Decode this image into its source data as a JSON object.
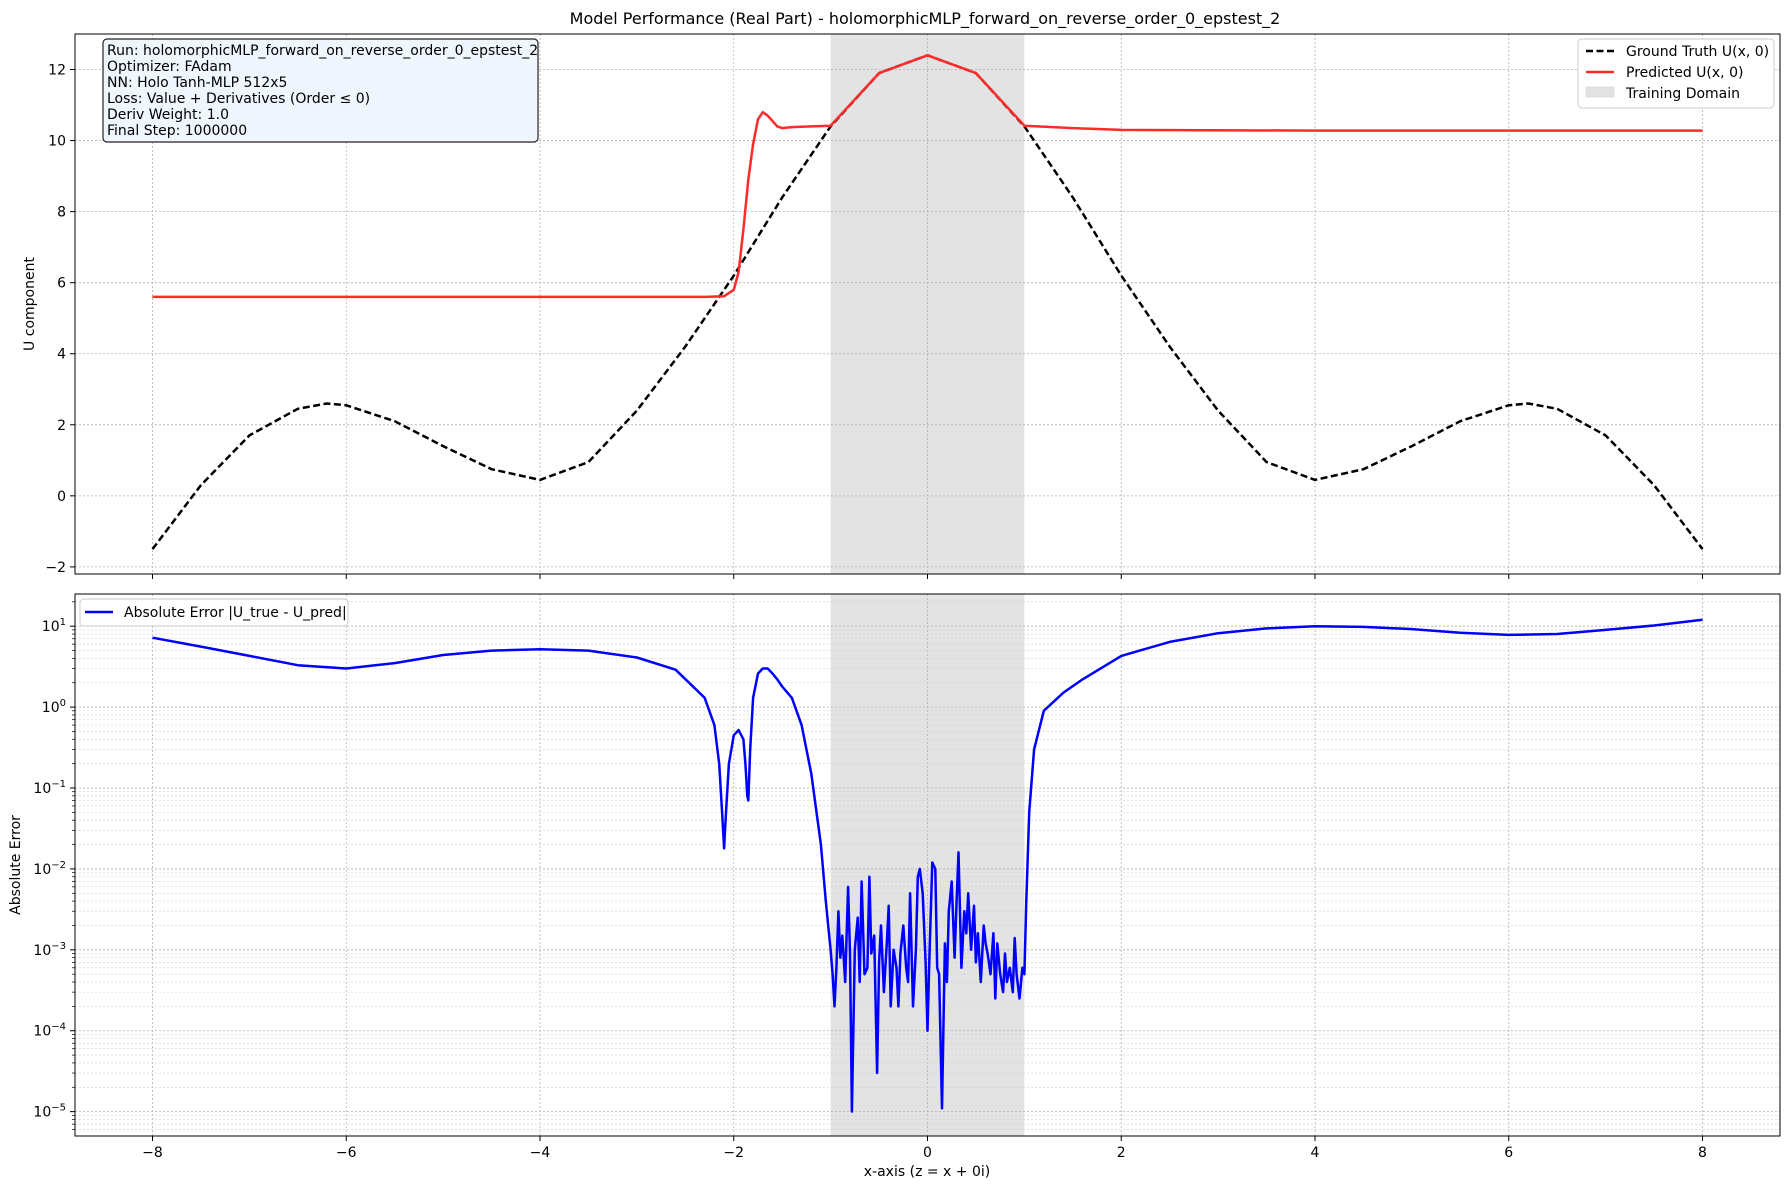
{
  "figure": {
    "title": "Model Performance (Real Part) - holomorphicMLP_forward_on_reverse_order_0_epstest_2",
    "xlabel": "x-axis (z = x + 0i)"
  },
  "chart_data": [
    {
      "type": "line",
      "panel": "top",
      "ylabel": "U component",
      "xlim": [
        -8.8,
        8.8
      ],
      "ylim": [
        -2.2,
        13.0
      ],
      "x_ticks": [
        -8,
        -6,
        -4,
        -2,
        0,
        2,
        4,
        6,
        8
      ],
      "x_tick_labels": [
        "−8",
        "−6",
        "−4",
        "−2",
        "0",
        "2",
        "4",
        "6",
        "8"
      ],
      "y_ticks": [
        -2,
        0,
        2,
        4,
        6,
        8,
        10,
        12
      ],
      "y_tick_labels": [
        "−2",
        "0",
        "2",
        "4",
        "6",
        "8",
        "10",
        "12"
      ],
      "grid": true,
      "shaded_region": {
        "x": [
          -1,
          1
        ],
        "label": "Training Domain",
        "color": "#d3d3d3"
      },
      "legend_position": "upper right",
      "info_box": [
        "Run: holomorphicMLP_forward_on_reverse_order_0_epstest_2",
        "Optimizer: FAdam",
        "NN: Holo Tanh-MLP 512x5",
        "Loss: Value + Derivatives (Order ≤ 0)",
        "Deriv Weight: 1.0",
        "Final Step: 1000000"
      ],
      "series": [
        {
          "name": "Ground Truth U(x, 0)",
          "color": "#000000",
          "style": "dashed",
          "x": [
            -8,
            -7.5,
            -7,
            -6.5,
            -6.2,
            -6,
            -5.5,
            -5,
            -4.5,
            -4,
            -3.5,
            -3,
            -2.5,
            -2,
            -1.5,
            -1,
            -0.5,
            0,
            0.5,
            1,
            1.5,
            2,
            2.5,
            3,
            3.5,
            4,
            4.5,
            5,
            5.5,
            6,
            6.2,
            6.5,
            7,
            7.5,
            8
          ],
          "y": [
            -1.5,
            0.3,
            1.7,
            2.45,
            2.6,
            2.55,
            2.1,
            1.4,
            0.75,
            0.45,
            0.95,
            2.4,
            4.2,
            6.2,
            8.4,
            10.4,
            11.9,
            12.4,
            11.9,
            10.4,
            8.4,
            6.2,
            4.2,
            2.4,
            0.95,
            0.45,
            0.75,
            1.4,
            2.1,
            2.55,
            2.6,
            2.45,
            1.7,
            0.3,
            -1.5
          ]
        },
        {
          "name": "Predicted U(x, 0)",
          "color": "#ff2a2a",
          "style": "solid",
          "x": [
            -8,
            -6,
            -4,
            -3,
            -2.3,
            -2.1,
            -2.0,
            -1.95,
            -1.9,
            -1.85,
            -1.8,
            -1.75,
            -1.7,
            -1.65,
            -1.6,
            -1.55,
            -1.5,
            -1.4,
            -1.2,
            -1,
            -0.5,
            0,
            0.5,
            1,
            1.5,
            2,
            4,
            6,
            8
          ],
          "y": [
            5.6,
            5.6,
            5.6,
            5.6,
            5.6,
            5.62,
            5.8,
            6.3,
            7.5,
            8.9,
            9.9,
            10.6,
            10.8,
            10.7,
            10.55,
            10.4,
            10.35,
            10.38,
            10.4,
            10.42,
            11.9,
            12.4,
            11.9,
            10.42,
            10.35,
            10.3,
            10.28,
            10.28,
            10.28
          ]
        }
      ]
    },
    {
      "type": "line",
      "panel": "bottom",
      "ylabel": "Absolute Error",
      "yscale": "log",
      "xlim": [
        -8.8,
        8.8
      ],
      "ylim": [
        5e-06,
        25
      ],
      "x_ticks": [
        -8,
        -6,
        -4,
        -2,
        0,
        2,
        4,
        6,
        8
      ],
      "x_tick_labels": [
        "−8",
        "−6",
        "−4",
        "−2",
        "0",
        "2",
        "4",
        "6",
        "8"
      ],
      "y_ticks": [
        1e-05,
        0.0001,
        0.001,
        0.01,
        0.1,
        1,
        10
      ],
      "y_tick_labels": [
        [
          "10",
          "−5"
        ],
        [
          "10",
          "−4"
        ],
        [
          "10",
          "−3"
        ],
        [
          "10",
          "−2"
        ],
        [
          "10",
          "−1"
        ],
        [
          "10",
          "0"
        ],
        [
          "10",
          "1"
        ]
      ],
      "grid": true,
      "shaded_region": {
        "x": [
          -1,
          1
        ],
        "color": "#d3d3d3"
      },
      "legend_position": "upper left",
      "series": [
        {
          "name": "Absolute Error |U_true - U_pred|",
          "color": "#0000ff",
          "style": "solid",
          "x": [
            -8,
            -7.5,
            -7,
            -6.5,
            -6,
            -5.5,
            -5,
            -4.5,
            -4,
            -3.5,
            -3,
            -2.6,
            -2.3,
            -2.2,
            -2.15,
            -2.12,
            -2.1,
            -2.08,
            -2.05,
            -2.0,
            -1.95,
            -1.9,
            -1.88,
            -1.86,
            -1.85,
            -1.83,
            -1.8,
            -1.75,
            -1.7,
            -1.65,
            -1.6,
            -1.55,
            -1.5,
            -1.4,
            -1.3,
            -1.2,
            -1.1,
            -1.05,
            -1.0,
            -0.98,
            -0.96,
            -0.94,
            -0.92,
            -0.9,
            -0.88,
            -0.85,
            -0.82,
            -0.8,
            -0.78,
            -0.75,
            -0.72,
            -0.7,
            -0.68,
            -0.65,
            -0.62,
            -0.6,
            -0.58,
            -0.55,
            -0.52,
            -0.5,
            -0.48,
            -0.45,
            -0.42,
            -0.4,
            -0.38,
            -0.35,
            -0.32,
            -0.3,
            -0.28,
            -0.25,
            -0.22,
            -0.2,
            -0.18,
            -0.15,
            -0.12,
            -0.1,
            -0.08,
            -0.05,
            -0.02,
            0.0,
            0.02,
            0.05,
            0.08,
            0.1,
            0.12,
            0.15,
            0.18,
            0.2,
            0.22,
            0.25,
            0.28,
            0.3,
            0.32,
            0.35,
            0.38,
            0.4,
            0.42,
            0.45,
            0.48,
            0.5,
            0.52,
            0.55,
            0.58,
            0.6,
            0.62,
            0.65,
            0.68,
            0.7,
            0.72,
            0.75,
            0.78,
            0.8,
            0.82,
            0.85,
            0.88,
            0.9,
            0.92,
            0.95,
            0.98,
            1.0,
            1.02,
            1.05,
            1.1,
            1.2,
            1.4,
            1.6,
            2,
            2.5,
            3,
            3.5,
            4,
            4.5,
            5,
            5.5,
            6,
            6.5,
            7,
            7.5,
            8
          ],
          "y": [
            7.2,
            5.6,
            4.3,
            3.3,
            3.0,
            3.5,
            4.4,
            5.0,
            5.2,
            5.0,
            4.1,
            2.9,
            1.3,
            0.6,
            0.2,
            0.05,
            0.018,
            0.05,
            0.2,
            0.45,
            0.52,
            0.4,
            0.2,
            0.08,
            0.07,
            0.3,
            1.3,
            2.6,
            3.0,
            3.0,
            2.6,
            2.2,
            1.8,
            1.3,
            0.6,
            0.15,
            0.02,
            0.004,
            0.001,
            0.0005,
            0.0002,
            0.0006,
            0.003,
            0.0008,
            0.0015,
            0.0004,
            0.006,
            0.0009,
            1e-05,
            0.001,
            0.0025,
            0.0004,
            0.007,
            0.0005,
            0.0006,
            0.008,
            0.0009,
            0.0015,
            3e-05,
            0.0007,
            0.002,
            0.0003,
            0.0012,
            0.0035,
            0.0002,
            0.001,
            0.0006,
            0.0002,
            0.0009,
            0.002,
            0.0006,
            0.0004,
            0.005,
            0.0002,
            0.001,
            0.008,
            0.01,
            0.005,
            0.0007,
            0.0001,
            0.0008,
            0.012,
            0.01,
            0.0006,
            0.0005,
            1.1e-05,
            0.0012,
            0.0004,
            0.003,
            0.007,
            0.0008,
            0.004,
            0.016,
            0.0006,
            0.003,
            0.0016,
            0.005,
            0.001,
            0.0035,
            0.0007,
            0.0016,
            0.0004,
            0.002,
            0.0012,
            0.0009,
            0.0005,
            0.0016,
            0.00025,
            0.0012,
            0.0005,
            0.0003,
            0.0009,
            0.0004,
            0.0006,
            0.0003,
            0.0014,
            0.0005,
            0.00025,
            0.0006,
            0.0005,
            0.004,
            0.05,
            0.3,
            0.9,
            1.5,
            2.2,
            4.3,
            6.4,
            8.2,
            9.4,
            10.0,
            9.8,
            9.2,
            8.3,
            7.8,
            8.0,
            9.0,
            10.2,
            12.0
          ]
        }
      ]
    }
  ]
}
